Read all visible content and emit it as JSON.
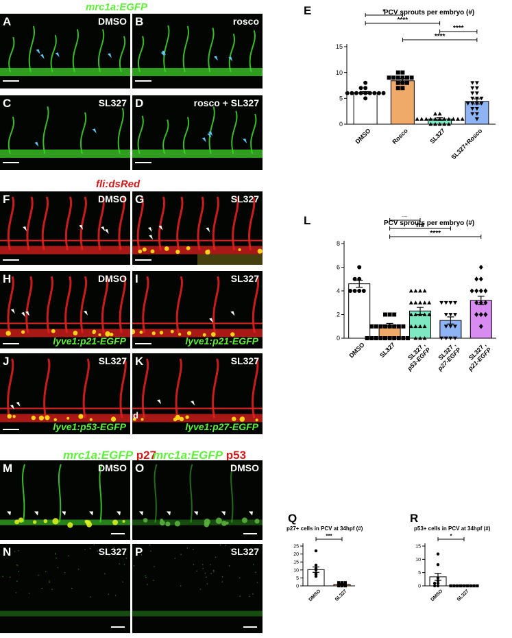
{
  "headers": {
    "top": "mrc1a:EGFP",
    "middle": "fli:dsRed",
    "bottom_left_green": "mrc1a:EGFP",
    "bottom_left_red": "p27",
    "bottom_mid_green": "mrc1a:EGFP",
    "bottom_mid_red": "p53"
  },
  "panels": [
    {
      "id": "A",
      "condition": "DMSO",
      "reporter": ""
    },
    {
      "id": "B",
      "condition": "rosco",
      "reporter": ""
    },
    {
      "id": "C",
      "condition": "SL327",
      "reporter": ""
    },
    {
      "id": "D",
      "condition": "rosco + SL327",
      "reporter": ""
    },
    {
      "id": "F",
      "condition": "DMSO",
      "reporter": ""
    },
    {
      "id": "G",
      "condition": "SL327",
      "reporter": ""
    },
    {
      "id": "H",
      "condition": "DMSO",
      "reporter": "lyve1:p21-EGFP"
    },
    {
      "id": "I",
      "condition": "SL327",
      "reporter": "lyve1:p21-EGFP"
    },
    {
      "id": "J",
      "condition": "SL327",
      "reporter": "lyve1:p53-EGFP"
    },
    {
      "id": "K",
      "condition": "SL327",
      "reporter": "lyve1:p27-EGFP",
      "extra": "d"
    },
    {
      "id": "M",
      "condition": "DMSO",
      "reporter": ""
    },
    {
      "id": "N",
      "condition": "SL327",
      "reporter": ""
    },
    {
      "id": "O",
      "condition": "DMSO",
      "reporter": ""
    },
    {
      "id": "P",
      "condition": "SL327",
      "reporter": ""
    }
  ],
  "chart_data": [
    {
      "panel": "E",
      "type": "bar",
      "title": "PCV sprouts per embryo (#)",
      "categories": [
        "DMSO",
        "Rosco",
        "SL327",
        "SL327+Rosco"
      ],
      "values": [
        6.1,
        8.4,
        1.0,
        4.4
      ],
      "errors": [
        0.2,
        0.4,
        0.25,
        0.5
      ],
      "colors": [
        "#ffffff",
        "#efaa6a",
        "#7ee8c2",
        "#8fb4f3"
      ],
      "markers": [
        "circle",
        "square",
        "triangle-up",
        "triangle-down"
      ],
      "points": [
        [
          6,
          6,
          6,
          6,
          6,
          6,
          6,
          6,
          7,
          7,
          6,
          5,
          8
        ],
        [
          9,
          9,
          9,
          9,
          8,
          8,
          9,
          9,
          7,
          7,
          8,
          10,
          10
        ],
        [
          1,
          1,
          1,
          1,
          1,
          1,
          1,
          1,
          0,
          0,
          0,
          0,
          1,
          2,
          1,
          2,
          0,
          1
        ],
        [
          4,
          4,
          4,
          4,
          5,
          5,
          5,
          6,
          7,
          8,
          8,
          7,
          3,
          3,
          2,
          2,
          1,
          6
        ]
      ],
      "yticks": [
        0,
        5,
        10,
        15
      ],
      "ylim": [
        0,
        15
      ],
      "significance": [
        {
          "a": 0,
          "b": 1,
          "label": "*"
        },
        {
          "a": 0,
          "b": 2,
          "label": "****"
        },
        {
          "a": 2,
          "b": 3,
          "label": "****"
        },
        {
          "a": 1,
          "b": 3,
          "label": "****"
        }
      ]
    },
    {
      "panel": "L",
      "type": "bar",
      "title": "PCV sprouts per embryo (#)",
      "categories": [
        "DMSO",
        "SL327",
        "SL327 , p53-EGFP",
        "SL327 , p27-EGFP",
        "SL327 , p21-EGFP"
      ],
      "category_lines": [
        [
          "DMSO"
        ],
        [
          "SL327"
        ],
        [
          "SL327 ,",
          "p53-EGFP"
        ],
        [
          "SL327 ,",
          "p27-EGFP"
        ],
        [
          "SL327 ,",
          "p21-EGFP"
        ]
      ],
      "values": [
        4.6,
        1.1,
        2.3,
        1.5,
        3.2
      ],
      "errors": [
        0.3,
        0.15,
        0.3,
        0.3,
        0.35
      ],
      "colors": [
        "#ffffff",
        "#efaa6a",
        "#7ee8c2",
        "#8fb4f3",
        "#d88cf1"
      ],
      "markers": [
        "circle",
        "square",
        "triangle-up",
        "triangle-down",
        "diamond"
      ],
      "points": [
        [
          4,
          4,
          4,
          5,
          5,
          6,
          4
        ],
        [
          2,
          2,
          2,
          1,
          1,
          1,
          1,
          1,
          1,
          0,
          0,
          0,
          0,
          0,
          0,
          0,
          0,
          0,
          0,
          1,
          1
        ],
        [
          4,
          4,
          4,
          4,
          3,
          3,
          3,
          3,
          2,
          2,
          2,
          2,
          2,
          1,
          1,
          1,
          1,
          0,
          0,
          0,
          3
        ],
        [
          3,
          3,
          3,
          3,
          2,
          2,
          2,
          1,
          1,
          1,
          0,
          0,
          0,
          0
        ],
        [
          6,
          5,
          5,
          4,
          4,
          4,
          3,
          3,
          3,
          2,
          2,
          2,
          1,
          4
        ]
      ],
      "yticks": [
        0,
        2,
        4,
        6,
        8
      ],
      "ylim": [
        0,
        8
      ],
      "significance": [
        {
          "a": 0,
          "b": 1,
          "label": "****"
        },
        {
          "a": 1,
          "b": 2,
          "label": "**"
        },
        {
          "a": 1,
          "b": 3,
          "label": "ns"
        },
        {
          "a": 1,
          "b": 4,
          "label": "****"
        }
      ]
    },
    {
      "panel": "Q",
      "type": "bar",
      "title": "p27+ cells in PCV at 34hpf (#)",
      "categories": [
        "DMSO",
        "SL327"
      ],
      "values": [
        10.2,
        0.9
      ],
      "errors": [
        1.7,
        0.4
      ],
      "colors": [
        "#ffffff",
        "#efaa6a"
      ],
      "markers": [
        "circle",
        "square"
      ],
      "points": [
        [
          22,
          13,
          11,
          10,
          8,
          6,
          7
        ],
        [
          2,
          2,
          2,
          1,
          1,
          0,
          0,
          0
        ]
      ],
      "yticks": [
        0,
        5,
        10,
        15,
        20,
        25
      ],
      "ylim": [
        0,
        25
      ],
      "significance": [
        {
          "a": 0,
          "b": 1,
          "label": "***"
        }
      ]
    },
    {
      "panel": "R",
      "type": "bar",
      "title": "p53+ cells in PCV at 34hpf (#)",
      "categories": [
        "DMSO",
        "SL327"
      ],
      "values": [
        3.4,
        0.1
      ],
      "errors": [
        1.3,
        0.1
      ],
      "colors": [
        "#ffffff",
        "#efaa6a"
      ],
      "markers": [
        "circle",
        "square"
      ],
      "points": [
        [
          12,
          8,
          3,
          2,
          1,
          1,
          0,
          0
        ],
        [
          0,
          0,
          0,
          0,
          0,
          0,
          0,
          0,
          0
        ]
      ],
      "yticks": [
        0,
        5,
        10,
        15
      ],
      "ylim": [
        0,
        15
      ],
      "significance": [
        {
          "a": 0,
          "b": 1,
          "label": "*"
        }
      ]
    }
  ]
}
